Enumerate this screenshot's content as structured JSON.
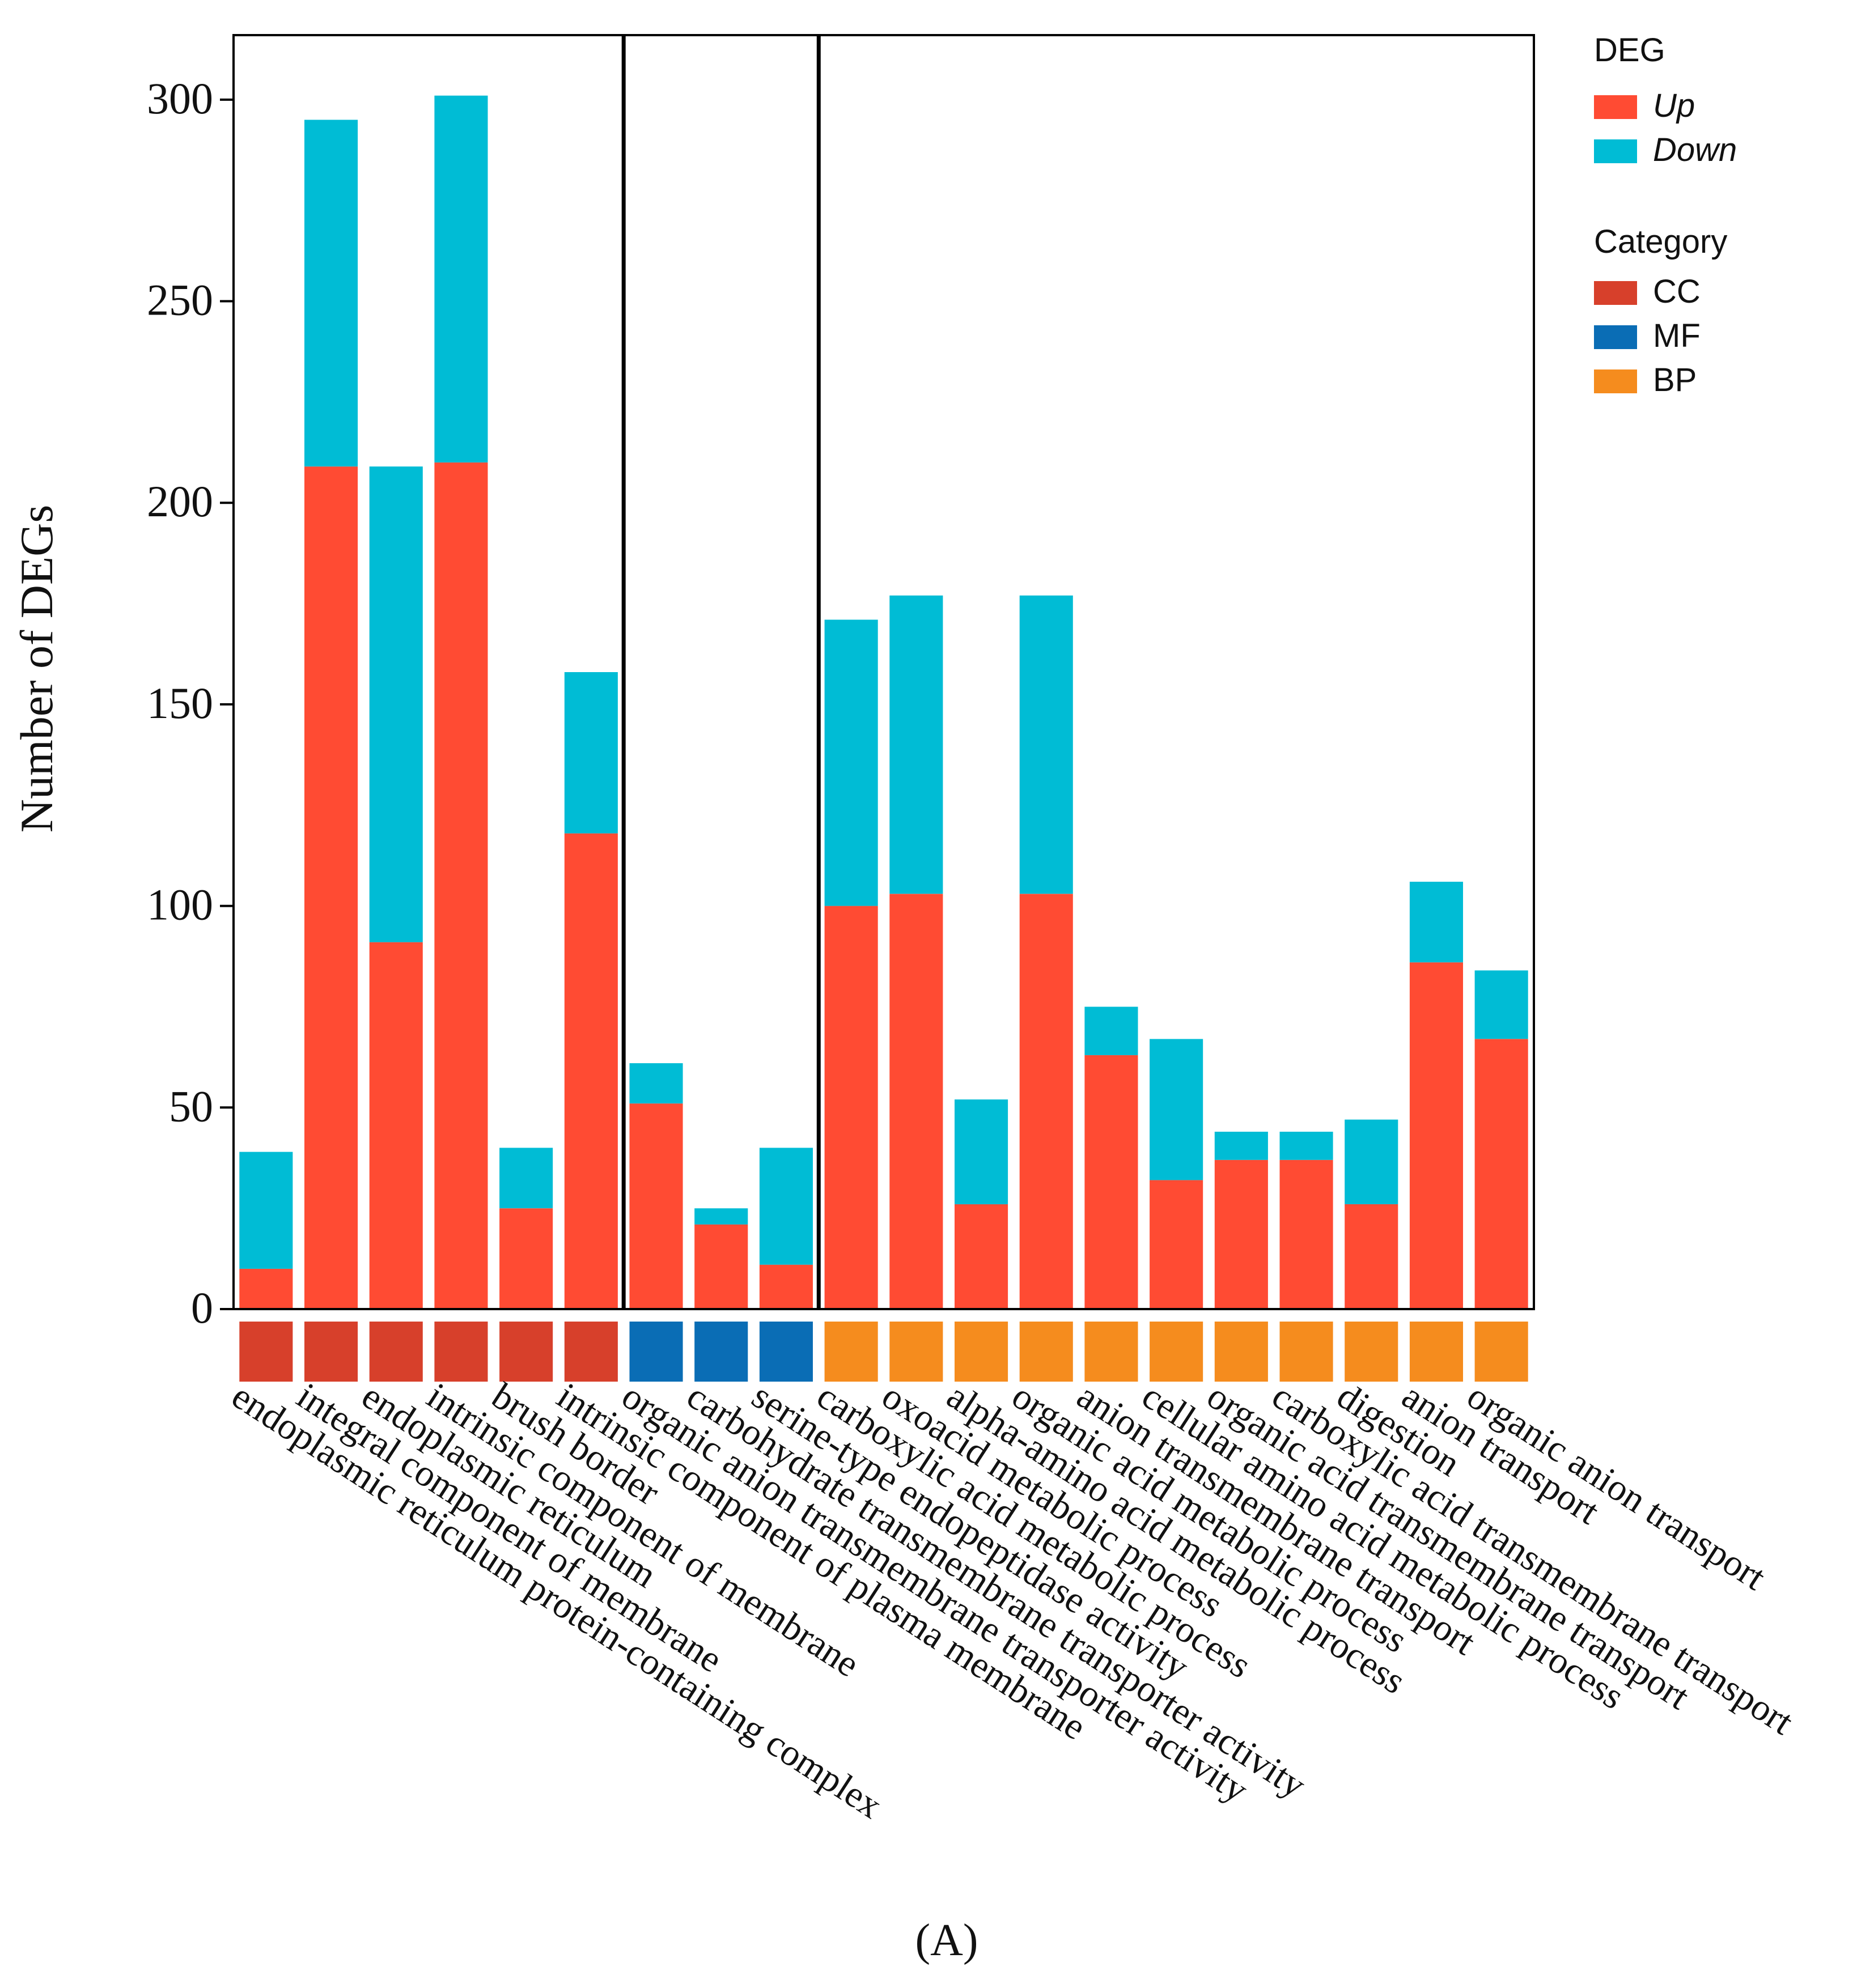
{
  "chart_data": {
    "type": "bar",
    "stacked": true,
    "ylabel": "Number of DEGs",
    "ylim": [
      0,
      316
    ],
    "yticks": [
      0,
      50,
      100,
      150,
      200,
      250,
      300
    ],
    "categories": [
      "endoplasmic reticulum protein-containing complex",
      "integral component of membrane",
      "endoplasmic reticulum",
      "intrinsic component of membrane",
      "brush border",
      "intrinsic component of plasma membrane",
      "organic anion transmembrane transporter activity",
      "carbohydrate transmembrane transporter activity",
      "serine-type endopeptidase activity",
      "carboxylic acid metabolic process",
      "oxoacid metabolic process",
      "alpha-amino acid metabolic process",
      "organic acid metabolic process",
      "anion transmembrane transport",
      "cellular amino acid metabolic process",
      "organic acid transmembrane transport",
      "carboxylic acid transmembrane transport",
      "digestion",
      "anion transport",
      "organic anion transport"
    ],
    "category_groups": [
      "CC",
      "CC",
      "CC",
      "CC",
      "CC",
      "CC",
      "MF",
      "MF",
      "MF",
      "BP",
      "BP",
      "BP",
      "BP",
      "BP",
      "BP",
      "BP",
      "BP",
      "BP",
      "BP",
      "BP"
    ],
    "series": [
      {
        "name": "Up",
        "color": "#FF4B33",
        "values": [
          10,
          209,
          91,
          210,
          25,
          118,
          51,
          21,
          11,
          100,
          103,
          26,
          103,
          63,
          32,
          37,
          37,
          26,
          86,
          67
        ]
      },
      {
        "name": "Down",
        "color": "#00BCD5",
        "values": [
          29,
          86,
          118,
          91,
          15,
          40,
          10,
          4,
          29,
          71,
          74,
          26,
          74,
          12,
          35,
          7,
          7,
          21,
          20,
          17
        ]
      }
    ],
    "group_separators_after": [
      6,
      9
    ],
    "legend": {
      "position": "top-right",
      "deg_title": "DEG",
      "deg_items": [
        {
          "label": "Up",
          "color": "#FF4B33"
        },
        {
          "label": "Down",
          "color": "#00BCD5"
        }
      ],
      "category_title": "Category",
      "category_items": [
        {
          "label": "CC",
          "color": "#D7402B"
        },
        {
          "label": "MF",
          "color": "#0A6DB5"
        },
        {
          "label": "BP",
          "color": "#F58C1E"
        }
      ]
    },
    "caption": "(A)"
  }
}
